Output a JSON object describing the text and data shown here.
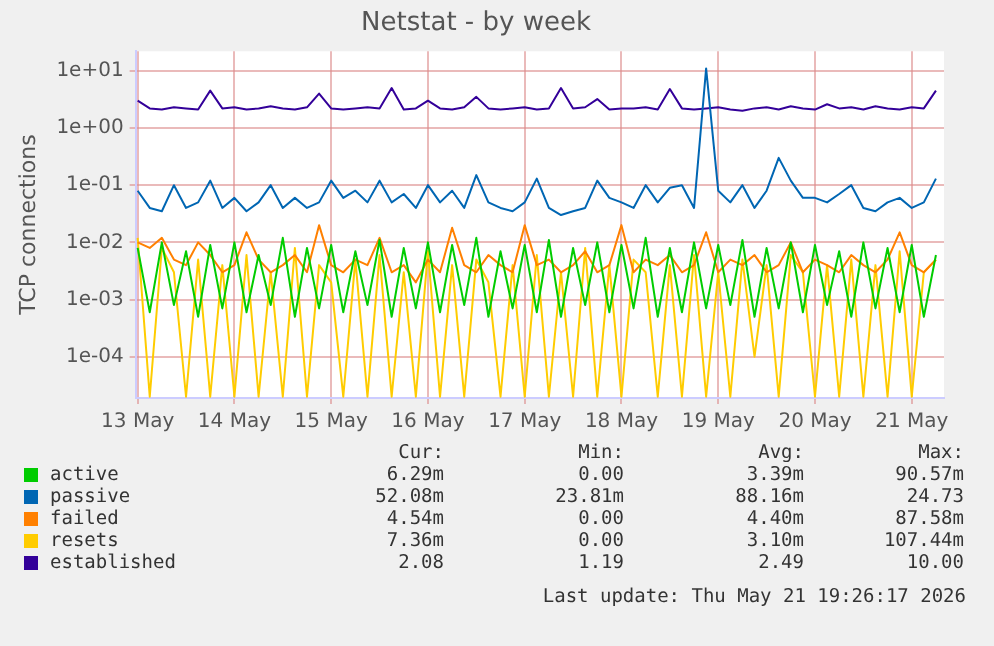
{
  "chart_data": {
    "type": "line",
    "title": "Netstat - by week",
    "ylabel": "TCP connections",
    "log": "y",
    "grid": true,
    "legend": "bottom",
    "marker": "none",
    "line_style": "solid",
    "xlim": [
      "2026-05-12T23:30",
      "2026-05-21T08:00"
    ],
    "xticks": [
      {
        "value": "2026-05-13",
        "label": "13 May"
      },
      {
        "value": "2026-05-14",
        "label": "14 May"
      },
      {
        "value": "2026-05-15",
        "label": "15 May"
      },
      {
        "value": "2026-05-16",
        "label": "16 May"
      },
      {
        "value": "2026-05-17",
        "label": "17 May"
      },
      {
        "value": "2026-05-18",
        "label": "18 May"
      },
      {
        "value": "2026-05-19",
        "label": "19 May"
      },
      {
        "value": "2026-05-20",
        "label": "20 May"
      },
      {
        "value": "2026-05-21",
        "label": "21 May"
      }
    ],
    "ylim": [
      1.9e-05,
      22
    ],
    "yticks": [
      {
        "value": 0.0001,
        "label": "1e-04"
      },
      {
        "value": 0.001,
        "label": "1e-03"
      },
      {
        "value": 0.01,
        "label": "1e-02"
      },
      {
        "value": 0.1,
        "label": "1e-01"
      },
      {
        "value": 1,
        "label": "1e+00"
      },
      {
        "value": 10,
        "label": "1e+01"
      }
    ],
    "x": [
      "2026-05-13T00:00",
      "2026-05-13T03:00",
      "2026-05-13T06:00",
      "2026-05-13T09:00",
      "2026-05-13T12:00",
      "2026-05-13T15:00",
      "2026-05-13T18:00",
      "2026-05-13T21:00",
      "2026-05-14T00:00",
      "2026-05-14T03:00",
      "2026-05-14T06:00",
      "2026-05-14T09:00",
      "2026-05-14T12:00",
      "2026-05-14T15:00",
      "2026-05-14T18:00",
      "2026-05-14T21:00",
      "2026-05-15T00:00",
      "2026-05-15T03:00",
      "2026-05-15T06:00",
      "2026-05-15T09:00",
      "2026-05-15T12:00",
      "2026-05-15T15:00",
      "2026-05-15T18:00",
      "2026-05-15T21:00",
      "2026-05-16T00:00",
      "2026-05-16T03:00",
      "2026-05-16T06:00",
      "2026-05-16T09:00",
      "2026-05-16T12:00",
      "2026-05-16T15:00",
      "2026-05-16T18:00",
      "2026-05-16T21:00",
      "2026-05-17T00:00",
      "2026-05-17T03:00",
      "2026-05-17T06:00",
      "2026-05-17T09:00",
      "2026-05-17T12:00",
      "2026-05-17T15:00",
      "2026-05-17T18:00",
      "2026-05-17T21:00",
      "2026-05-18T00:00",
      "2026-05-18T03:00",
      "2026-05-18T06:00",
      "2026-05-18T09:00",
      "2026-05-18T12:00",
      "2026-05-18T15:00",
      "2026-05-18T18:00",
      "2026-05-18T21:00",
      "2026-05-19T00:00",
      "2026-05-19T03:00",
      "2026-05-19T06:00",
      "2026-05-19T09:00",
      "2026-05-19T12:00",
      "2026-05-19T15:00",
      "2026-05-19T18:00",
      "2026-05-19T21:00",
      "2026-05-20T00:00",
      "2026-05-20T03:00",
      "2026-05-20T06:00",
      "2026-05-20T09:00",
      "2026-05-20T12:00",
      "2026-05-20T15:00",
      "2026-05-20T18:00",
      "2026-05-20T21:00",
      "2026-05-21T00:00",
      "2026-05-21T03:00",
      "2026-05-21T06:00"
    ],
    "series": [
      {
        "name": "active",
        "color": "#00cc00",
        "values": [
          0.008,
          0.0006,
          0.01,
          0.0008,
          0.007,
          0.0005,
          0.009,
          0.0007,
          0.01,
          0.0006,
          0.006,
          0.0008,
          0.012,
          0.0005,
          0.008,
          0.0007,
          0.009,
          0.0006,
          0.007,
          0.0008,
          0.011,
          0.0005,
          0.008,
          0.0007,
          0.01,
          0.0006,
          0.009,
          0.0008,
          0.012,
          0.0005,
          0.007,
          0.0007,
          0.009,
          0.0006,
          0.011,
          0.0005,
          0.008,
          0.0008,
          0.01,
          0.0006,
          0.009,
          0.0007,
          0.012,
          0.0005,
          0.008,
          0.0006,
          0.01,
          0.0007,
          0.009,
          0.0008,
          0.011,
          0.0005,
          0.008,
          0.0007,
          0.01,
          0.0006,
          0.009,
          0.0008,
          0.007,
          0.0005,
          0.01,
          0.0007,
          0.008,
          0.0006,
          0.009,
          0.0005,
          0.006
        ]
      },
      {
        "name": "passive",
        "color": "#0066b3",
        "values": [
          0.08,
          0.04,
          0.035,
          0.1,
          0.04,
          0.05,
          0.12,
          0.04,
          0.06,
          0.035,
          0.05,
          0.1,
          0.04,
          0.06,
          0.04,
          0.05,
          0.12,
          0.06,
          0.08,
          0.05,
          0.12,
          0.05,
          0.07,
          0.04,
          0.1,
          0.05,
          0.08,
          0.04,
          0.15,
          0.05,
          0.04,
          0.035,
          0.05,
          0.13,
          0.04,
          0.03,
          0.035,
          0.04,
          0.12,
          0.06,
          0.05,
          0.04,
          0.1,
          0.05,
          0.09,
          0.1,
          0.04,
          11,
          0.08,
          0.05,
          0.1,
          0.04,
          0.08,
          0.3,
          0.12,
          0.06,
          0.06,
          0.05,
          0.07,
          0.1,
          0.04,
          0.035,
          0.05,
          0.06,
          0.04,
          0.05,
          0.13
        ]
      },
      {
        "name": "failed",
        "color": "#ff8000",
        "values": [
          0.01,
          0.008,
          0.012,
          0.005,
          0.004,
          0.01,
          0.006,
          0.003,
          0.004,
          0.015,
          0.005,
          0.003,
          0.004,
          0.006,
          0.003,
          0.02,
          0.004,
          0.003,
          0.005,
          0.004,
          0.012,
          0.003,
          0.004,
          0.002,
          0.005,
          0.003,
          0.018,
          0.004,
          0.003,
          0.006,
          0.004,
          0.003,
          0.02,
          0.004,
          0.005,
          0.003,
          0.004,
          0.007,
          0.003,
          0.004,
          0.02,
          0.003,
          0.005,
          0.004,
          0.006,
          0.003,
          0.004,
          0.015,
          0.003,
          0.005,
          0.004,
          0.006,
          0.003,
          0.004,
          0.01,
          0.003,
          0.005,
          0.004,
          0.003,
          0.006,
          0.004,
          0.003,
          0.005,
          0.015,
          0.004,
          0.003,
          0.005
        ]
      },
      {
        "name": "resets",
        "color": "#ffcc00",
        "values": [
          0.012,
          2e-05,
          0.008,
          0.003,
          2e-05,
          0.005,
          2e-05,
          0.004,
          2e-05,
          0.006,
          2e-05,
          0.003,
          2e-05,
          0.008,
          2e-05,
          0.004,
          0.002,
          2e-05,
          0.005,
          2e-05,
          0.006,
          2e-05,
          0.003,
          2e-05,
          0.007,
          2e-05,
          0.004,
          2e-05,
          0.005,
          0.002,
          2e-05,
          0.004,
          2e-05,
          0.006,
          2e-05,
          0.003,
          2e-05,
          0.008,
          2e-05,
          0.004,
          2e-05,
          0.005,
          0.003,
          2e-05,
          0.004,
          2e-05,
          0.006,
          2e-05,
          0.003,
          2e-05,
          0.005,
          0.0001,
          0.004,
          2e-05,
          0.006,
          0.003,
          2e-05,
          0.004,
          2e-05,
          0.005,
          2e-05,
          0.004,
          2e-05,
          0.007,
          2e-05,
          0.003,
          0.005
        ]
      },
      {
        "name": "established",
        "color": "#330099",
        "values": [
          3.0,
          2.2,
          2.1,
          2.3,
          2.2,
          2.1,
          4.5,
          2.2,
          2.3,
          2.1,
          2.2,
          2.4,
          2.2,
          2.1,
          2.3,
          4.0,
          2.2,
          2.1,
          2.2,
          2.3,
          2.2,
          5.0,
          2.1,
          2.2,
          3.0,
          2.2,
          2.1,
          2.3,
          3.5,
          2.2,
          2.1,
          2.2,
          2.3,
          2.1,
          2.2,
          5.0,
          2.2,
          2.3,
          3.2,
          2.1,
          2.2,
          2.2,
          2.3,
          2.1,
          4.8,
          2.2,
          2.1,
          2.2,
          2.3,
          2.1,
          2.0,
          2.2,
          2.3,
          2.1,
          2.4,
          2.2,
          2.1,
          2.6,
          2.2,
          2.3,
          2.1,
          2.4,
          2.2,
          2.1,
          2.3,
          2.2,
          4.5
        ]
      }
    ],
    "annotations": [
      "Cur:",
      "Min:",
      "Avg:",
      "Max:",
      "6.29m",
      "0.00",
      "3.39m",
      "90.57m",
      "52.08m",
      "23.81m",
      "88.16m",
      "24.73",
      "4.54m",
      "0.00",
      "4.40m",
      "87.58m",
      "7.36m",
      "0.00",
      "3.10m",
      "107.44m",
      "2.08",
      "1.19",
      "2.49",
      "10.00",
      "Last update: Thu May 21 19:26:17 2026"
    ]
  }
}
